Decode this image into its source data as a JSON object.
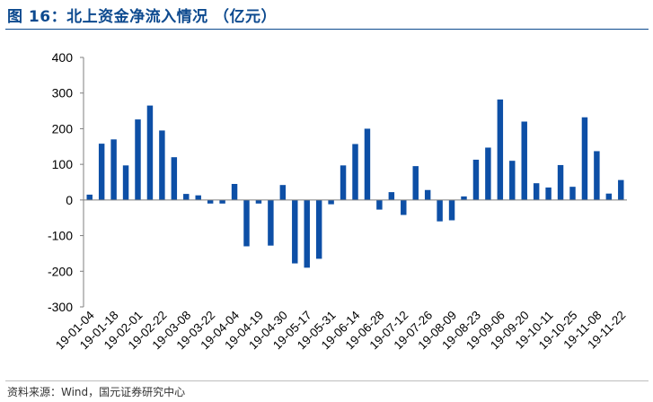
{
  "header": {
    "title": "图 16：北上资金净流入情况 （亿元）"
  },
  "footer": {
    "source": "资料来源：Wind，国元证券研究中心"
  },
  "colors": {
    "bar": "#0d4fa6",
    "title": "#0d4a8f",
    "axis": "#7f7f7f"
  },
  "chart_data": {
    "type": "bar",
    "ylim": [
      -300,
      400
    ],
    "yticks": [
      -300,
      -200,
      -100,
      0,
      100,
      200,
      300,
      400
    ],
    "grid": false,
    "legend": "none",
    "categories": [
      "19-01-04",
      "19-01-11",
      "19-01-18",
      "19-01-25",
      "19-02-01",
      "19-02-15",
      "19-02-22",
      "19-03-01",
      "19-03-08",
      "19-03-15",
      "19-03-22",
      "19-03-29",
      "19-04-04",
      "19-04-12",
      "19-04-19",
      "19-04-26",
      "19-04-30",
      "19-05-10",
      "19-05-17",
      "19-05-24",
      "19-05-31",
      "19-06-06",
      "19-06-14",
      "19-06-21",
      "19-06-28",
      "19-07-05",
      "19-07-12",
      "19-07-19",
      "19-07-26",
      "19-08-02",
      "19-08-09",
      "19-08-16",
      "19-08-23",
      "19-08-30",
      "19-09-06",
      "19-09-12",
      "19-09-20",
      "19-09-27",
      "19-10-11",
      "19-10-18",
      "19-10-25",
      "19-11-01",
      "19-11-08",
      "19-11-15",
      "19-11-22"
    ],
    "xticklabels": [
      "19-01-04",
      "19-01-18",
      "19-02-01",
      "19-02-22",
      "19-03-08",
      "19-03-22",
      "19-04-04",
      "19-04-19",
      "19-04-30",
      "19-05-17",
      "19-05-31",
      "19-06-14",
      "19-06-28",
      "19-07-12",
      "19-07-26",
      "19-08-09",
      "19-08-23",
      "19-09-06",
      "19-09-20",
      "19-10-11",
      "19-10-25",
      "19-11-08",
      "19-11-22"
    ],
    "values": [
      15,
      158,
      170,
      97,
      226,
      265,
      195,
      120,
      17,
      13,
      -10,
      -10,
      45,
      -130,
      -10,
      -128,
      42,
      -178,
      -190,
      -165,
      -12,
      97,
      157,
      200,
      -27,
      22,
      -42,
      95,
      28,
      -60,
      -57,
      10,
      113,
      147,
      282,
      110,
      220,
      47,
      35,
      98,
      37,
      232,
      137,
      18,
      56
    ]
  }
}
